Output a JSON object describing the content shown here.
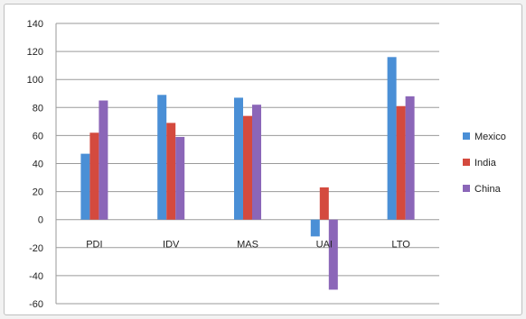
{
  "chart_data": {
    "type": "bar",
    "categories": [
      "PDI",
      "IDV",
      "MAS",
      "UAI",
      "LTO"
    ],
    "series": [
      {
        "name": "Mexico",
        "color": "#4a8fd6",
        "values": [
          47,
          89,
          87,
          -12,
          116
        ]
      },
      {
        "name": "India",
        "color": "#d44a3e",
        "values": [
          62,
          69,
          74,
          23,
          81
        ]
      },
      {
        "name": "China",
        "color": "#8b66b8",
        "values": [
          85,
          59,
          82,
          -50,
          88
        ]
      }
    ],
    "title": "",
    "xlabel": "",
    "ylabel": "",
    "ylim": [
      -60,
      140
    ],
    "yticks": [
      140,
      120,
      100,
      80,
      60,
      40,
      20,
      0,
      -20,
      -40,
      -60
    ],
    "grid": true,
    "legend_position": "right"
  }
}
